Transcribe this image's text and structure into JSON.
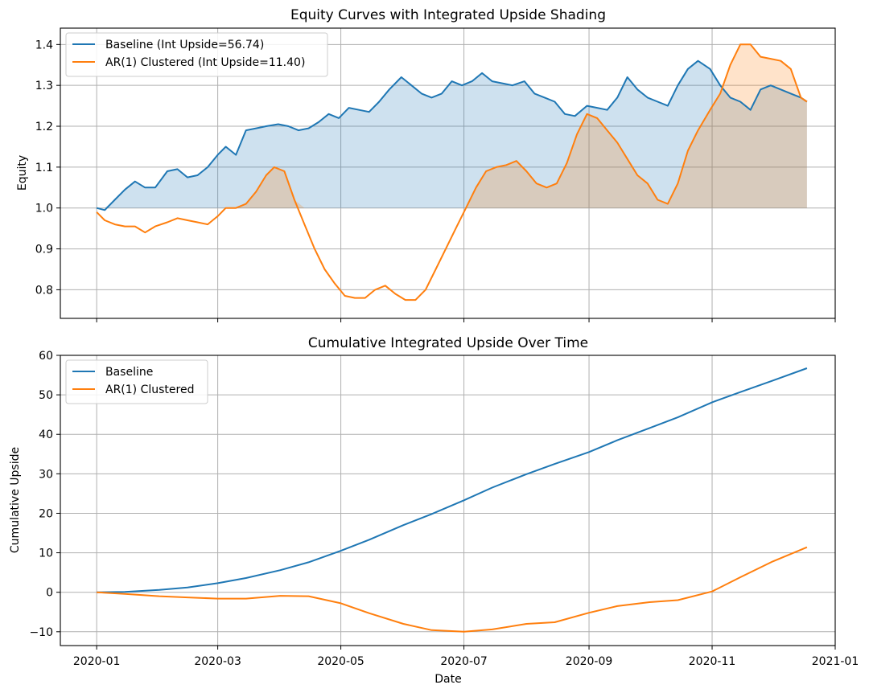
{
  "chart_data": [
    {
      "type": "line",
      "title": "Equity Curves with Integrated Upside Shading",
      "xlabel": "",
      "ylabel": "Equity",
      "xlim": [
        "2019-12-14",
        "2021-01-01"
      ],
      "ylim": [
        0.73,
        1.44
      ],
      "yticks": [
        0.8,
        0.9,
        1.0,
        1.1,
        1.2,
        1.3,
        1.4
      ],
      "ytick_labels": [
        "0.8",
        "0.9",
        "1.0",
        "1.1",
        "1.2",
        "1.3",
        "1.4"
      ],
      "xticks": [
        "2020-01-01",
        "2020-03-01",
        "2020-05-01",
        "2020-07-01",
        "2020-09-01",
        "2020-11-01",
        "2021-01-01"
      ],
      "xtick_labels": [],
      "grid": true,
      "legend": "top-left",
      "baseline": 1.0,
      "fill_above_baseline": true,
      "series": [
        {
          "name": "Baseline (Int Upside=56.74)",
          "color": "#1f77b4",
          "points": [
            [
              "2020-01-01",
              1.0
            ],
            [
              "2020-01-05",
              0.995
            ],
            [
              "2020-01-10",
              1.02
            ],
            [
              "2020-01-15",
              1.045
            ],
            [
              "2020-01-20",
              1.065
            ],
            [
              "2020-01-25",
              1.05
            ],
            [
              "2020-01-30",
              1.05
            ],
            [
              "2020-02-05",
              1.09
            ],
            [
              "2020-02-10",
              1.095
            ],
            [
              "2020-02-15",
              1.075
            ],
            [
              "2020-02-20",
              1.08
            ],
            [
              "2020-02-25",
              1.1
            ],
            [
              "2020-03-01",
              1.13
            ],
            [
              "2020-03-05",
              1.15
            ],
            [
              "2020-03-10",
              1.13
            ],
            [
              "2020-03-15",
              1.19
            ],
            [
              "2020-03-20",
              1.195
            ],
            [
              "2020-03-25",
              1.2
            ],
            [
              "2020-03-31",
              1.205
            ],
            [
              "2020-04-05",
              1.2
            ],
            [
              "2020-04-10",
              1.19
            ],
            [
              "2020-04-15",
              1.195
            ],
            [
              "2020-04-20",
              1.21
            ],
            [
              "2020-04-25",
              1.23
            ],
            [
              "2020-04-30",
              1.22
            ],
            [
              "2020-05-05",
              1.245
            ],
            [
              "2020-05-10",
              1.24
            ],
            [
              "2020-05-15",
              1.235
            ],
            [
              "2020-05-20",
              1.26
            ],
            [
              "2020-05-25",
              1.29
            ],
            [
              "2020-05-31",
              1.32
            ],
            [
              "2020-06-05",
              1.3
            ],
            [
              "2020-06-10",
              1.28
            ],
            [
              "2020-06-15",
              1.27
            ],
            [
              "2020-06-20",
              1.28
            ],
            [
              "2020-06-25",
              1.31
            ],
            [
              "2020-06-30",
              1.3
            ],
            [
              "2020-07-05",
              1.31
            ],
            [
              "2020-07-10",
              1.33
            ],
            [
              "2020-07-15",
              1.31
            ],
            [
              "2020-07-20",
              1.305
            ],
            [
              "2020-07-25",
              1.3
            ],
            [
              "2020-07-31",
              1.31
            ],
            [
              "2020-08-05",
              1.28
            ],
            [
              "2020-08-10",
              1.27
            ],
            [
              "2020-08-15",
              1.26
            ],
            [
              "2020-08-20",
              1.23
            ],
            [
              "2020-08-25",
              1.225
            ],
            [
              "2020-08-31",
              1.25
            ],
            [
              "2020-09-05",
              1.245
            ],
            [
              "2020-09-10",
              1.24
            ],
            [
              "2020-09-15",
              1.27
            ],
            [
              "2020-09-20",
              1.32
            ],
            [
              "2020-09-25",
              1.29
            ],
            [
              "2020-09-30",
              1.27
            ],
            [
              "2020-10-05",
              1.26
            ],
            [
              "2020-10-10",
              1.25
            ],
            [
              "2020-10-15",
              1.3
            ],
            [
              "2020-10-20",
              1.34
            ],
            [
              "2020-10-25",
              1.36
            ],
            [
              "2020-10-31",
              1.34
            ],
            [
              "2020-11-05",
              1.3
            ],
            [
              "2020-11-10",
              1.27
            ],
            [
              "2020-11-15",
              1.26
            ],
            [
              "2020-11-20",
              1.24
            ],
            [
              "2020-11-25",
              1.29
            ],
            [
              "2020-11-30",
              1.3
            ],
            [
              "2020-12-05",
              1.29
            ],
            [
              "2020-12-10",
              1.28
            ],
            [
              "2020-12-15",
              1.27
            ],
            [
              "2020-12-18",
              1.26
            ]
          ]
        },
        {
          "name": "AR(1) Clustered (Int Upside=11.40)",
          "color": "#ff7f0e",
          "points": [
            [
              "2020-01-01",
              0.99
            ],
            [
              "2020-01-05",
              0.97
            ],
            [
              "2020-01-10",
              0.96
            ],
            [
              "2020-01-15",
              0.955
            ],
            [
              "2020-01-20",
              0.955
            ],
            [
              "2020-01-25",
              0.94
            ],
            [
              "2020-01-30",
              0.955
            ],
            [
              "2020-02-05",
              0.965
            ],
            [
              "2020-02-10",
              0.975
            ],
            [
              "2020-02-15",
              0.97
            ],
            [
              "2020-02-20",
              0.965
            ],
            [
              "2020-02-25",
              0.96
            ],
            [
              "2020-03-01",
              0.98
            ],
            [
              "2020-03-05",
              1.0
            ],
            [
              "2020-03-10",
              1.0
            ],
            [
              "2020-03-15",
              1.01
            ],
            [
              "2020-03-20",
              1.04
            ],
            [
              "2020-03-25",
              1.08
            ],
            [
              "2020-03-29",
              1.1
            ],
            [
              "2020-04-03",
              1.09
            ],
            [
              "2020-04-08",
              1.02
            ],
            [
              "2020-04-13",
              0.96
            ],
            [
              "2020-04-18",
              0.9
            ],
            [
              "2020-04-23",
              0.85
            ],
            [
              "2020-04-28",
              0.815
            ],
            [
              "2020-05-03",
              0.785
            ],
            [
              "2020-05-08",
              0.78
            ],
            [
              "2020-05-13",
              0.78
            ],
            [
              "2020-05-18",
              0.8
            ],
            [
              "2020-05-23",
              0.81
            ],
            [
              "2020-05-28",
              0.79
            ],
            [
              "2020-06-02",
              0.775
            ],
            [
              "2020-06-07",
              0.775
            ],
            [
              "2020-06-12",
              0.8
            ],
            [
              "2020-06-17",
              0.85
            ],
            [
              "2020-06-22",
              0.9
            ],
            [
              "2020-06-27",
              0.95
            ],
            [
              "2020-07-02",
              1.0
            ],
            [
              "2020-07-07",
              1.05
            ],
            [
              "2020-07-12",
              1.09
            ],
            [
              "2020-07-17",
              1.1
            ],
            [
              "2020-07-22",
              1.105
            ],
            [
              "2020-07-27",
              1.115
            ],
            [
              "2020-08-01",
              1.09
            ],
            [
              "2020-08-06",
              1.06
            ],
            [
              "2020-08-11",
              1.05
            ],
            [
              "2020-08-16",
              1.06
            ],
            [
              "2020-08-21",
              1.11
            ],
            [
              "2020-08-26",
              1.18
            ],
            [
              "2020-08-31",
              1.23
            ],
            [
              "2020-09-05",
              1.22
            ],
            [
              "2020-09-10",
              1.19
            ],
            [
              "2020-09-15",
              1.16
            ],
            [
              "2020-09-20",
              1.12
            ],
            [
              "2020-09-25",
              1.08
            ],
            [
              "2020-09-30",
              1.06
            ],
            [
              "2020-10-05",
              1.02
            ],
            [
              "2020-10-10",
              1.01
            ],
            [
              "2020-10-15",
              1.06
            ],
            [
              "2020-10-20",
              1.14
            ],
            [
              "2020-10-25",
              1.19
            ],
            [
              "2020-10-31",
              1.24
            ],
            [
              "2020-11-05",
              1.28
            ],
            [
              "2020-11-10",
              1.35
            ],
            [
              "2020-11-15",
              1.4
            ],
            [
              "2020-11-20",
              1.4
            ],
            [
              "2020-11-25",
              1.37
            ],
            [
              "2020-11-30",
              1.365
            ],
            [
              "2020-12-05",
              1.36
            ],
            [
              "2020-12-10",
              1.34
            ],
            [
              "2020-12-15",
              1.27
            ],
            [
              "2020-12-18",
              1.26
            ]
          ]
        }
      ]
    },
    {
      "type": "line",
      "title": "Cumulative Integrated Upside Over Time",
      "xlabel": "Date",
      "ylabel": "Cumulative Upside",
      "xlim": [
        "2019-12-14",
        "2021-01-01"
      ],
      "ylim": [
        -13.5,
        60
      ],
      "yticks": [
        -10,
        0,
        10,
        20,
        30,
        40,
        50,
        60
      ],
      "ytick_labels": [
        "−10",
        "0",
        "10",
        "20",
        "30",
        "40",
        "50",
        "60"
      ],
      "xticks": [
        "2020-01-01",
        "2020-03-01",
        "2020-05-01",
        "2020-07-01",
        "2020-09-01",
        "2020-11-01",
        "2021-01-01"
      ],
      "xtick_labels": [
        "2020-01",
        "2020-03",
        "2020-05",
        "2020-07",
        "2020-09",
        "2020-11",
        "2021-01"
      ],
      "grid": true,
      "legend": "top-left",
      "series": [
        {
          "name": "Baseline",
          "color": "#1f77b4",
          "points": [
            [
              "2020-01-01",
              0
            ],
            [
              "2020-01-15",
              0.1
            ],
            [
              "2020-02-01",
              0.6
            ],
            [
              "2020-02-15",
              1.2
            ],
            [
              "2020-03-01",
              2.3
            ],
            [
              "2020-03-15",
              3.6
            ],
            [
              "2020-04-01",
              5.6
            ],
            [
              "2020-04-15",
              7.6
            ],
            [
              "2020-05-01",
              10.5
            ],
            [
              "2020-05-15",
              13.3
            ],
            [
              "2020-06-01",
              17.0
            ],
            [
              "2020-06-15",
              19.8
            ],
            [
              "2020-07-01",
              23.3
            ],
            [
              "2020-07-15",
              26.5
            ],
            [
              "2020-08-01",
              29.9
            ],
            [
              "2020-08-15",
              32.5
            ],
            [
              "2020-09-01",
              35.5
            ],
            [
              "2020-09-15",
              38.5
            ],
            [
              "2020-10-01",
              41.6
            ],
            [
              "2020-10-15",
              44.3
            ],
            [
              "2020-11-01",
              48.1
            ],
            [
              "2020-11-15",
              50.7
            ],
            [
              "2020-12-01",
              53.6
            ],
            [
              "2020-12-18",
              56.74
            ]
          ]
        },
        {
          "name": "AR(1) Clustered",
          "color": "#ff7f0e",
          "points": [
            [
              "2020-01-01",
              0
            ],
            [
              "2020-01-15",
              -0.4
            ],
            [
              "2020-02-01",
              -1.0
            ],
            [
              "2020-02-15",
              -1.3
            ],
            [
              "2020-03-01",
              -1.6
            ],
            [
              "2020-03-15",
              -1.6
            ],
            [
              "2020-04-01",
              -0.9
            ],
            [
              "2020-04-15",
              -1.0
            ],
            [
              "2020-05-01",
              -2.8
            ],
            [
              "2020-05-15",
              -5.3
            ],
            [
              "2020-06-01",
              -8.0
            ],
            [
              "2020-06-15",
              -9.6
            ],
            [
              "2020-07-01",
              -10.0
            ],
            [
              "2020-07-15",
              -9.4
            ],
            [
              "2020-08-01",
              -8.0
            ],
            [
              "2020-08-15",
              -7.6
            ],
            [
              "2020-09-01",
              -5.2
            ],
            [
              "2020-09-15",
              -3.5
            ],
            [
              "2020-10-01",
              -2.5
            ],
            [
              "2020-10-15",
              -2.0
            ],
            [
              "2020-11-01",
              0.2
            ],
            [
              "2020-11-15",
              3.8
            ],
            [
              "2020-12-01",
              7.8
            ],
            [
              "2020-12-18",
              11.4
            ]
          ]
        }
      ]
    }
  ]
}
